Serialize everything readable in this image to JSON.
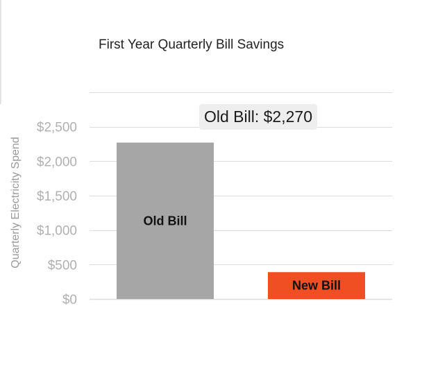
{
  "chart_data": {
    "type": "bar",
    "title": "First Year Quarterly Bill Savings",
    "xlabel": "",
    "ylabel": "Quarterly Electricity Spend",
    "ylim": [
      0,
      3000
    ],
    "yticks": [
      0,
      500,
      1000,
      1500,
      2000,
      2500
    ],
    "ytick_labels": [
      "$0",
      "$500",
      "$1,000",
      "$1,500",
      "$2,000",
      "$2,500"
    ],
    "categories": [
      "Old Bill",
      "New Bill"
    ],
    "values": [
      2270,
      390
    ],
    "colors": [
      "#a6a6a6",
      "#f04e23"
    ],
    "grid": true,
    "legend": "none"
  },
  "tooltip": {
    "text": "Old Bill: $2,270"
  },
  "colors": {
    "grid": "#dddddd",
    "tick_text": "#b0b0b0"
  }
}
